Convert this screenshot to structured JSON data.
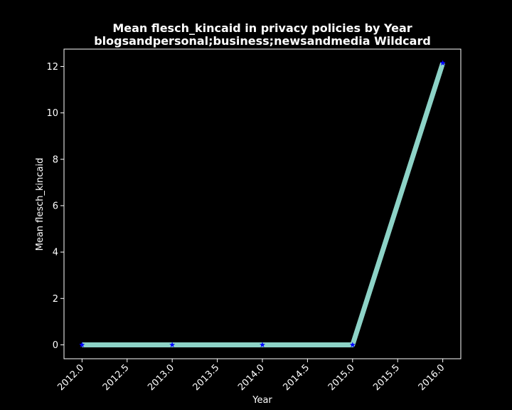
{
  "chart_data": {
    "type": "line",
    "title": "Mean flesch_kincaid in privacy policies by Year",
    "subtitle": "blogsandpersonal;business;newsandmedia Wildcard",
    "xlabel": "Year",
    "ylabel": "Mean flesch_kincaid",
    "x": [
      2012,
      2013,
      2014,
      2015,
      2016
    ],
    "series": [
      {
        "values": [
          0,
          0,
          0,
          0,
          12.15
        ]
      }
    ],
    "xlim": [
      2011.8,
      2016.2
    ],
    "ylim": [
      -0.6,
      12.75
    ],
    "x_ticks": [
      2012.0,
      2012.5,
      2013.0,
      2013.5,
      2014.0,
      2014.5,
      2015.0,
      2015.5,
      2016.0
    ],
    "x_tick_labels": [
      "2012.0",
      "2012.5",
      "2013.0",
      "2013.5",
      "2014.0",
      "2014.5",
      "2015.0",
      "2015.5",
      "2016.0"
    ],
    "y_ticks": [
      0,
      2,
      4,
      6,
      8,
      10,
      12
    ],
    "y_tick_labels": [
      "0",
      "2",
      "4",
      "6",
      "8",
      "10",
      "12"
    ],
    "grid": false,
    "colors": {
      "background": "#000000",
      "axes": "#ffffff",
      "line": "#8dd3c7",
      "marker": "#0000ff"
    },
    "marker": "star"
  }
}
